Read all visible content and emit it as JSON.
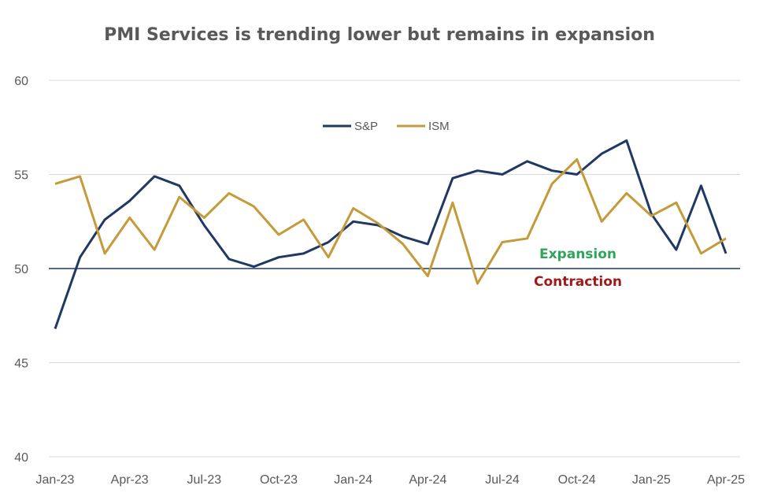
{
  "chart_data": {
    "type": "line",
    "title": "PMI Services is trending lower but remains in expansion",
    "xlabel": "",
    "ylabel": "",
    "ylim": [
      40,
      60
    ],
    "yticks": [
      40,
      45,
      50,
      55,
      60
    ],
    "x": [
      "Jan-23",
      "Feb-23",
      "Mar-23",
      "Apr-23",
      "May-23",
      "Jun-23",
      "Jul-23",
      "Aug-23",
      "Sep-23",
      "Oct-23",
      "Nov-23",
      "Dec-23",
      "Jan-24",
      "Feb-24",
      "Mar-24",
      "Apr-24",
      "May-24",
      "Jun-24",
      "Jul-24",
      "Aug-24",
      "Sep-24",
      "Oct-24",
      "Nov-24",
      "Dec-24",
      "Jan-25",
      "Feb-25",
      "Mar-25",
      "Apr-25"
    ],
    "xtick_labels": [
      "Jan-23",
      "Apr-23",
      "Jul-23",
      "Oct-23",
      "Jan-24",
      "Apr-24",
      "Jul-24",
      "Oct-24",
      "Jan-25",
      "Apr-25"
    ],
    "reference_line": 50,
    "grid": true,
    "legend_position": "top-center",
    "series": [
      {
        "name": "S&P",
        "color": "#1f3864",
        "values": [
          46.8,
          50.6,
          52.6,
          53.6,
          54.9,
          54.4,
          52.3,
          50.5,
          50.1,
          50.6,
          50.8,
          51.4,
          52.5,
          52.3,
          51.7,
          51.3,
          54.8,
          55.2,
          55.0,
          55.7,
          55.2,
          55.0,
          56.1,
          56.8,
          52.9,
          51.0,
          54.4,
          50.8
        ]
      },
      {
        "name": "ISM",
        "color": "#c49a3a",
        "values": [
          54.5,
          54.9,
          50.8,
          52.7,
          51.0,
          53.8,
          52.7,
          54.0,
          53.3,
          51.8,
          52.6,
          50.6,
          53.2,
          52.4,
          51.3,
          49.6,
          53.5,
          49.2,
          51.4,
          51.6,
          54.5,
          55.8,
          52.5,
          54.0,
          52.8,
          53.5,
          50.8,
          51.6
        ]
      }
    ],
    "annotations": {
      "expansion": {
        "text": "Expansion",
        "color": "#2ea55a"
      },
      "contraction": {
        "text": "Contraction",
        "color": "#a11a1a"
      }
    }
  }
}
